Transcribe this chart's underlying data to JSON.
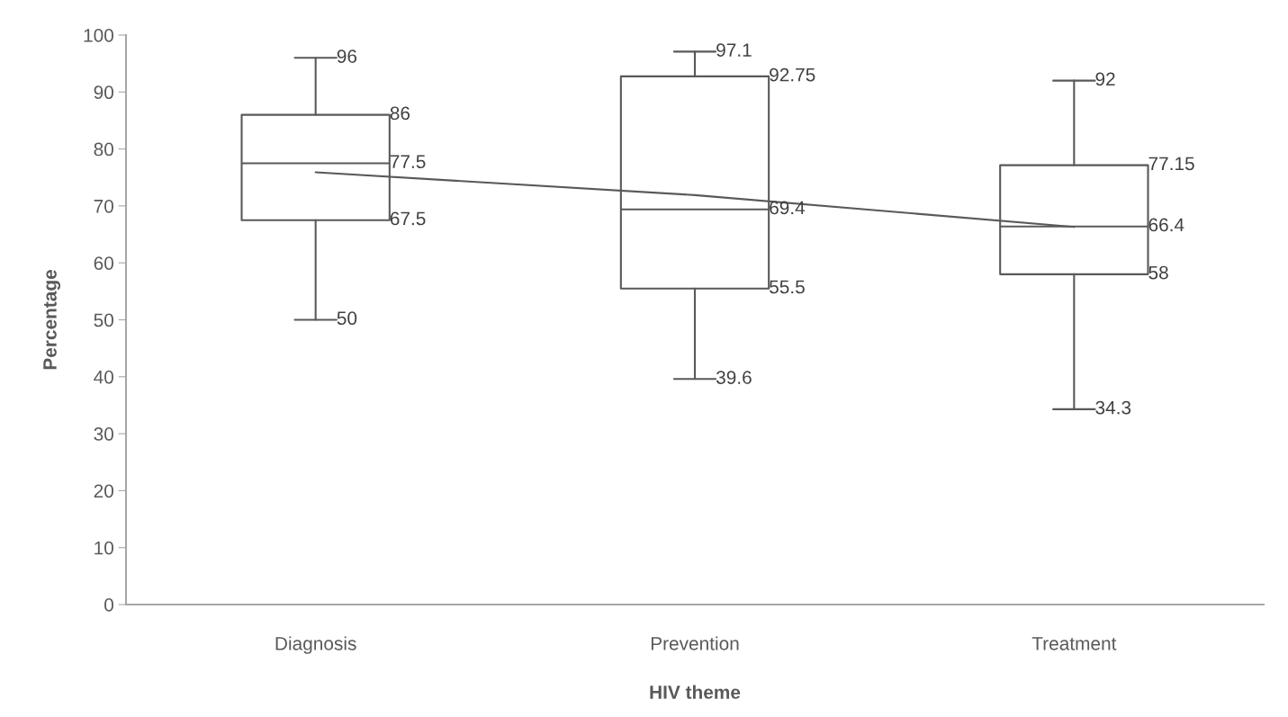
{
  "chart_data": {
    "type": "box",
    "xlabel": "HIV theme",
    "ylabel": "Percentage",
    "categories": [
      "Diagnosis",
      "Prevention",
      "Treatment"
    ],
    "boxes": [
      {
        "low": 50,
        "q1": 67.5,
        "median": 77.5,
        "q3": 86,
        "high": 96
      },
      {
        "low": 39.6,
        "q1": 55.5,
        "median": 69.4,
        "q3": 92.75,
        "high": 97.1
      },
      {
        "low": 34.3,
        "q1": 58,
        "median": 66.4,
        "q3": 77.15,
        "high": 92
      }
    ],
    "series": [
      {
        "type": "line",
        "color": "#595959",
        "values": [
          75.9,
          71.9,
          66.3
        ]
      }
    ],
    "color": "#595959",
    "ylim": [
      0,
      100
    ],
    "yticks": [
      0,
      10,
      20,
      30,
      40,
      50,
      60,
      70,
      80,
      90,
      100
    ],
    "annotations": [
      "96",
      "86",
      "77.5",
      "67.5",
      "50",
      "97.1",
      "92.75",
      "69.4",
      "55.5",
      "39.6",
      "92",
      "77.15",
      "66.4",
      "58",
      "34.3"
    ],
    "grid": false
  }
}
